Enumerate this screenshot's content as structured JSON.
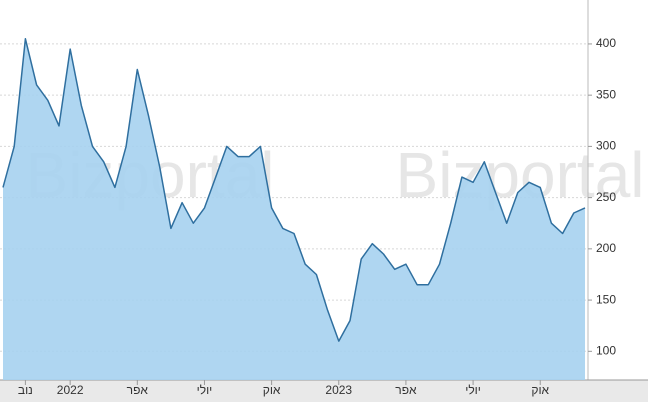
{
  "chart_data": {
    "type": "area",
    "watermark": "Bizportal",
    "categories": [
      null,
      null,
      "נוב",
      null,
      null,
      null,
      "2022",
      null,
      null,
      null,
      null,
      null,
      "אפר",
      null,
      null,
      null,
      null,
      null,
      "יולי",
      null,
      null,
      null,
      null,
      null,
      "אוק",
      null,
      null,
      null,
      null,
      null,
      "2023",
      null,
      null,
      null,
      null,
      null,
      "אפר",
      null,
      null,
      null,
      null,
      null,
      "יולי",
      null,
      null,
      null,
      null,
      null,
      "אוק",
      null,
      null,
      null,
      null
    ],
    "values": [
      260,
      300,
      405,
      360,
      345,
      320,
      395,
      340,
      300,
      285,
      260,
      300,
      375,
      330,
      280,
      220,
      245,
      225,
      240,
      270,
      300,
      290,
      290,
      300,
      240,
      220,
      215,
      185,
      175,
      140,
      110,
      130,
      190,
      205,
      195,
      180,
      185,
      165,
      165,
      185,
      225,
      270,
      265,
      285,
      255,
      225,
      255,
      265,
      260,
      225,
      215,
      235,
      240
    ],
    "color": "#a6d2f0",
    "line_color": "#2f6f9f",
    "ylim": [
      72,
      438
    ],
    "yticks": [
      100,
      150,
      200,
      250,
      300,
      350,
      400
    ],
    "grid": true
  }
}
